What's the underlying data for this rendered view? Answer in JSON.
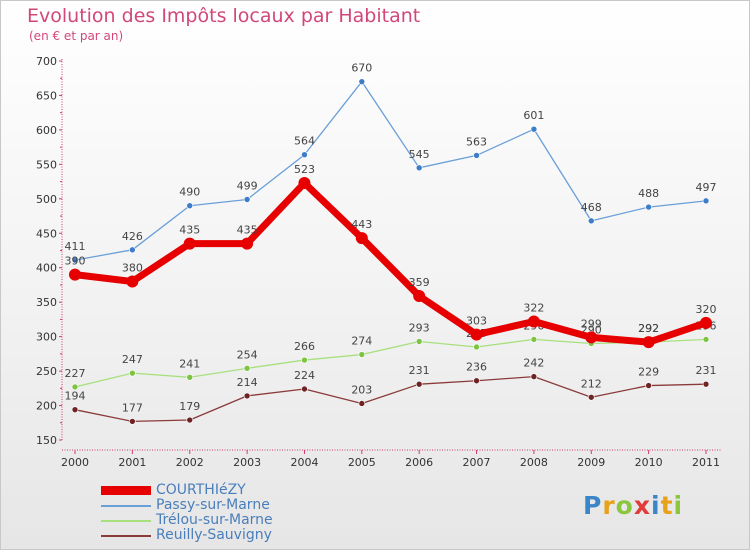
{
  "title": "Evolution des Impôts locaux par Habitant",
  "subtitle": "(en € et par an)",
  "logo": {
    "text": "Proxiti",
    "colors": [
      "#3a86c8",
      "#e8a21a",
      "#8cc63f",
      "#e23b3b",
      "#3a86c8",
      "#e8a21a",
      "#8cc63f"
    ]
  },
  "chart_data": {
    "type": "line",
    "title": "Evolution des Impôts locaux par Habitant",
    "subtitle": "(en € et par an)",
    "x": [
      "2000",
      "2001",
      "2002",
      "2003",
      "2004",
      "2005",
      "2006",
      "2007",
      "2008",
      "2009",
      "2010",
      "2011"
    ],
    "ylim": [
      150,
      700
    ],
    "yticks": [
      150,
      200,
      250,
      300,
      350,
      400,
      450,
      500,
      550,
      600,
      650,
      700
    ],
    "grid": false,
    "legend_position": "bottom-left",
    "series": [
      {
        "name": "Passy-sur-Marne",
        "color": "#6a9fd8",
        "marker": "#3d7cc9",
        "width": 1.3,
        "labels": true,
        "values": [
          411,
          426,
          490,
          499,
          564,
          670,
          545,
          563,
          601,
          468,
          488,
          497
        ]
      },
      {
        "name": "Trélou-sur-Marne",
        "color": "#a8e07e",
        "marker": "#7cc442",
        "width": 1.3,
        "labels": true,
        "values": [
          227,
          247,
          241,
          254,
          266,
          274,
          293,
          285,
          296,
          290,
          292,
          296
        ],
        "label_texts": [
          "227",
          "247",
          "241",
          "254",
          "266",
          "274",
          "293",
          "285",
          "296",
          "290",
          "292",
          "296"
        ]
      },
      {
        "name": "Reuilly-Sauvigny",
        "color": "#8b3a3a",
        "marker": "#6e2424",
        "width": 1.3,
        "labels": true,
        "values": [
          194,
          177,
          179,
          214,
          224,
          203,
          231,
          236,
          242,
          212,
          229,
          231
        ]
      },
      {
        "name": "COURTHIéZY",
        "color": "#e60000",
        "marker": "#e60000",
        "width": 7,
        "labels": true,
        "values": [
          390,
          380,
          435,
          435,
          523,
          443,
          359,
          303,
          322,
          299,
          292,
          320
        ]
      }
    ],
    "legend": [
      {
        "name": "COURTHIéZY",
        "color": "#e60000",
        "thickness": 9
      },
      {
        "name": "Passy-sur-Marne",
        "color": "#6a9fd8",
        "thickness": 2
      },
      {
        "name": "Trélou-sur-Marne",
        "color": "#a8e07e",
        "thickness": 2
      },
      {
        "name": "Reuilly-Sauvigny",
        "color": "#8b3a3a",
        "thickness": 2
      }
    ]
  }
}
